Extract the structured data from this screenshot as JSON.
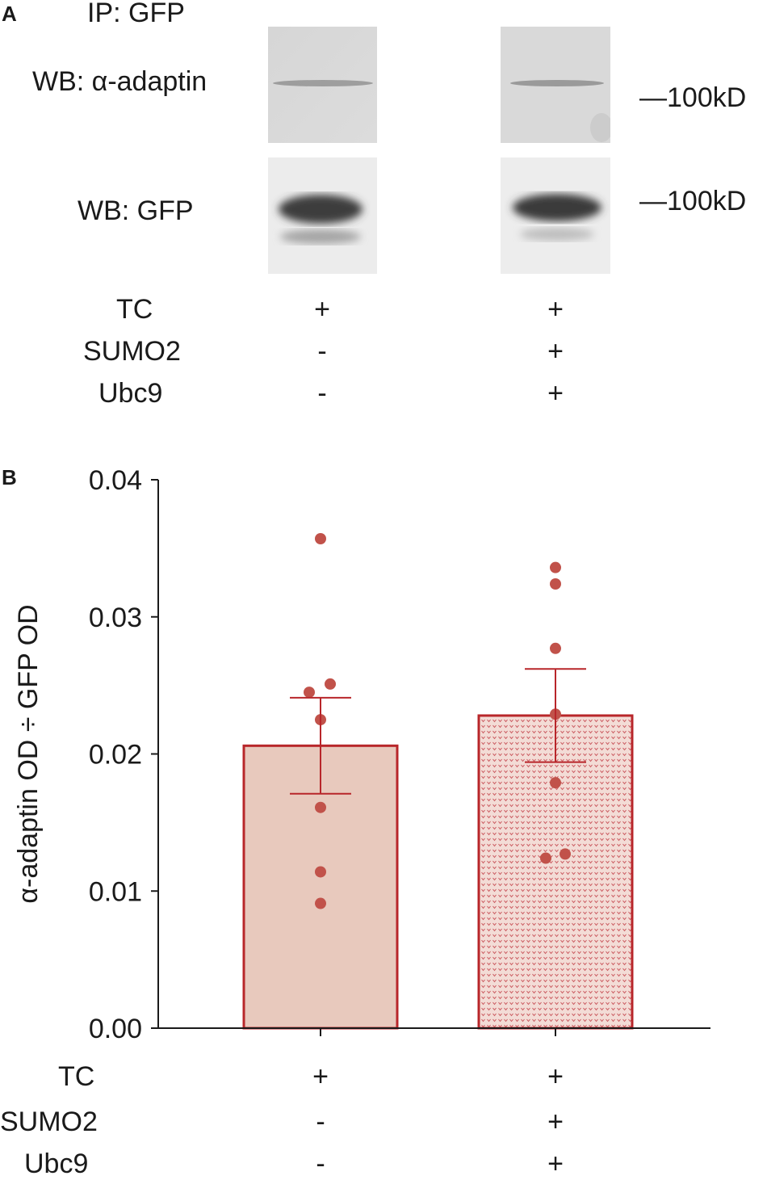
{
  "panel_a": {
    "letter": "A",
    "ip_label": "IP: GFP",
    "wb_top_label": "WB:  α-adaptin",
    "wb_bottom_label": "WB: GFP",
    "marker_top": "—100kD",
    "marker_bottom": "—100kD",
    "conditions": [
      {
        "name": "TC",
        "lane1": "+",
        "lane2": "+"
      },
      {
        "name": "SUMO2",
        "lane1": "-",
        "lane2": "+"
      },
      {
        "name": "Ubc9",
        "lane1": "-",
        "lane2": "+"
      }
    ]
  },
  "panel_b": {
    "letter": "B",
    "conditions": [
      {
        "name": "TC",
        "lane1": "+",
        "lane2": "+"
      },
      {
        "name": "SUMO2",
        "lane1": "-",
        "lane2": "+"
      },
      {
        "name": "Ubc9",
        "lane1": "-",
        "lane2": "+"
      }
    ]
  },
  "chart_data": {
    "type": "bar",
    "ylabel": "α-adaptin OD ÷ GFP OD",
    "ylim": [
      0,
      0.04
    ],
    "yticks": [
      "0.00",
      "0.01",
      "0.02",
      "0.03",
      "0.04"
    ],
    "ytick_values": [
      0,
      0.01,
      0.02,
      0.03,
      0.04
    ],
    "grid": false,
    "bars": [
      {
        "mean": 0.0206,
        "sem": 0.0035,
        "points": [
          0.0357,
          0.0245,
          0.0251,
          0.0225,
          0.0161,
          0.0114,
          0.0091
        ],
        "fill": "#e8c9bd",
        "pattern": "solid"
      },
      {
        "mean": 0.0228,
        "sem": 0.0034,
        "points": [
          0.0336,
          0.0324,
          0.0277,
          0.0229,
          0.0179,
          0.0127,
          0.0124
        ],
        "fill": "#f3dcd6",
        "pattern": "dotted"
      }
    ],
    "colors": {
      "bar_edge": "#b8262a",
      "points": "#c1524a",
      "axis": "#1a1a1a"
    }
  }
}
